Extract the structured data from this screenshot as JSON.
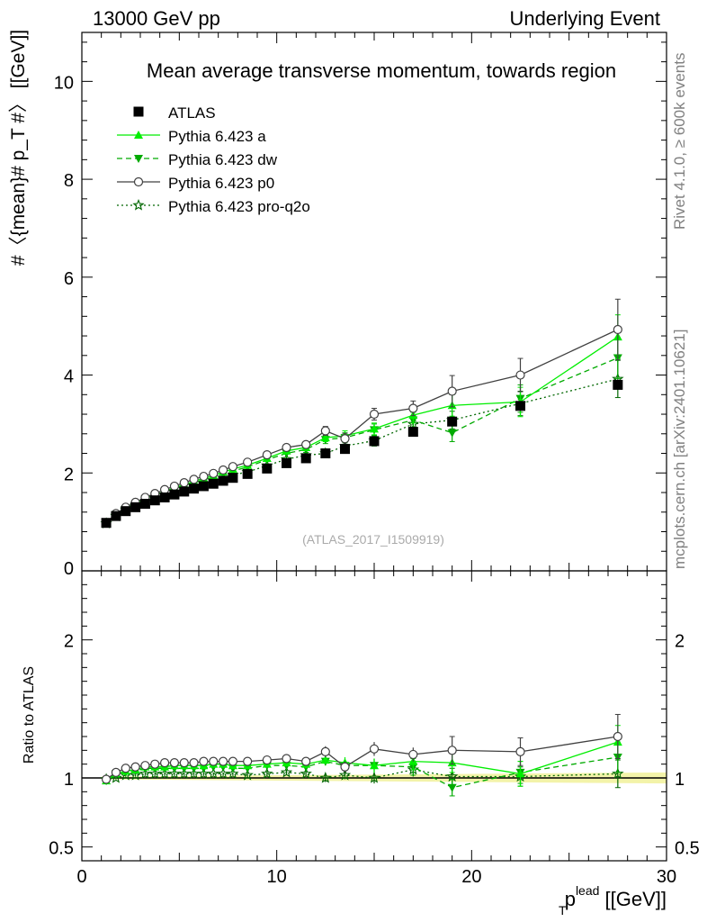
{
  "header": {
    "left": "13000 GeV pp",
    "right": "Underlying Event"
  },
  "side_labels": {
    "rivet": "Rivet 4.1.0, ≥ 600k events",
    "mcplots": "mcplots.cern.ch [arXiv:2401.10621]"
  },
  "colors": {
    "atlas": "#000000",
    "pythia_a": "#00ee00",
    "pythia_dw": "#00aa00",
    "pythia_p0": "#404040",
    "pythia_proq2o": "#006600",
    "band": "#f2f2a0"
  },
  "chart_data": [
    {
      "type": "scatter",
      "panel": "main",
      "title": "Mean average transverse momentum, towards region",
      "watermark": "(ATLAS_2017_I1509919)",
      "ylabel": "#〈{mean}# p_T #〉 [[GeV]]",
      "xlim": [
        0,
        30
      ],
      "ylim": [
        0,
        11.0
      ],
      "yticks": [
        {
          "v": 0,
          "label": "0"
        },
        {
          "v": 2,
          "label": "2"
        },
        {
          "v": 4,
          "label": "4"
        },
        {
          "v": 6,
          "label": "6"
        },
        {
          "v": 8,
          "label": "8"
        },
        {
          "v": 10,
          "label": "10"
        }
      ],
      "legend": [
        {
          "key": "atlas",
          "label": "ATLAS"
        },
        {
          "key": "a",
          "label": "Pythia 6.423 a"
        },
        {
          "key": "dw",
          "label": "Pythia 6.423 dw"
        },
        {
          "key": "p0",
          "label": "Pythia 6.423 p0"
        },
        {
          "key": "proq2o",
          "label": "Pythia 6.423 pro-q2o"
        }
      ],
      "x": [
        1.25,
        1.75,
        2.25,
        2.75,
        3.25,
        3.75,
        4.25,
        4.75,
        5.25,
        5.75,
        6.25,
        6.75,
        7.25,
        7.75,
        8.5,
        9.5,
        10.5,
        11.5,
        12.5,
        13.5,
        15.0,
        17.0,
        19.0,
        22.5,
        27.5
      ],
      "series": [
        {
          "key": "atlas",
          "name": "ATLAS",
          "values": [
            0.98,
            1.12,
            1.22,
            1.3,
            1.37,
            1.44,
            1.5,
            1.56,
            1.62,
            1.68,
            1.73,
            1.78,
            1.84,
            1.9,
            1.98,
            2.09,
            2.2,
            2.3,
            2.4,
            2.49,
            2.65,
            2.84,
            3.05,
            3.37,
            3.8
          ]
        },
        {
          "key": "a",
          "name": "Pythia 6.423 a",
          "values": [
            0.98,
            1.16,
            1.28,
            1.38,
            1.48,
            1.55,
            1.62,
            1.7,
            1.76,
            1.83,
            1.89,
            1.95,
            2.02,
            2.08,
            2.16,
            2.3,
            2.45,
            2.52,
            2.72,
            2.76,
            2.9,
            3.18,
            3.38,
            3.45,
            4.78
          ],
          "errors": [
            0.01,
            0.01,
            0.01,
            0.01,
            0.01,
            0.01,
            0.01,
            0.01,
            0.02,
            0.02,
            0.02,
            0.02,
            0.02,
            0.03,
            0.03,
            0.04,
            0.05,
            0.06,
            0.08,
            0.1,
            0.12,
            0.16,
            0.22,
            0.3,
            0.45
          ]
        },
        {
          "key": "dw",
          "name": "Pythia 6.423 dw",
          "values": [
            0.98,
            1.15,
            1.27,
            1.36,
            1.46,
            1.53,
            1.6,
            1.67,
            1.74,
            1.8,
            1.86,
            1.92,
            1.98,
            2.04,
            2.12,
            2.27,
            2.4,
            2.48,
            2.68,
            2.72,
            2.88,
            3.08,
            2.82,
            3.52,
            4.35
          ],
          "errors": [
            0.01,
            0.01,
            0.01,
            0.01,
            0.01,
            0.01,
            0.01,
            0.01,
            0.02,
            0.02,
            0.02,
            0.02,
            0.02,
            0.03,
            0.03,
            0.04,
            0.05,
            0.06,
            0.08,
            0.1,
            0.12,
            0.16,
            0.18,
            0.28,
            0.42
          ]
        },
        {
          "key": "p0",
          "name": "Pythia 6.423 p0",
          "values": [
            0.98,
            1.17,
            1.3,
            1.4,
            1.5,
            1.58,
            1.66,
            1.73,
            1.8,
            1.87,
            1.93,
            1.99,
            2.06,
            2.13,
            2.22,
            2.37,
            2.52,
            2.58,
            2.86,
            2.7,
            3.2,
            3.32,
            3.67,
            4.0,
            4.93
          ],
          "errors": [
            0.01,
            0.01,
            0.01,
            0.01,
            0.01,
            0.01,
            0.01,
            0.01,
            0.02,
            0.02,
            0.02,
            0.02,
            0.02,
            0.03,
            0.03,
            0.04,
            0.05,
            0.06,
            0.09,
            0.11,
            0.12,
            0.15,
            0.32,
            0.34,
            0.62
          ]
        },
        {
          "key": "proq2o",
          "name": "Pythia 6.423 pro-q2o",
          "values": [
            0.97,
            1.12,
            1.25,
            1.33,
            1.41,
            1.48,
            1.55,
            1.61,
            1.67,
            1.73,
            1.78,
            1.84,
            1.9,
            1.96,
            2.02,
            2.15,
            2.28,
            2.36,
            2.4,
            2.55,
            2.66,
            3.0,
            3.08,
            3.42,
            3.92
          ],
          "errors": [
            0.01,
            0.01,
            0.01,
            0.01,
            0.01,
            0.01,
            0.01,
            0.01,
            0.02,
            0.02,
            0.02,
            0.02,
            0.02,
            0.03,
            0.03,
            0.04,
            0.05,
            0.06,
            0.07,
            0.09,
            0.11,
            0.14,
            0.18,
            0.25,
            0.38
          ]
        }
      ]
    },
    {
      "type": "scatter",
      "panel": "ratio",
      "ylabel": "Ratio to ATLAS",
      "xlabel_main": "p",
      "xlabel_sub": "T",
      "xlabel_sup": "lead",
      "xlabel_unit": "[[GeV]]",
      "xlim": [
        0,
        30
      ],
      "ylim": [
        0.4,
        2.5
      ],
      "xticks": [
        {
          "v": 0,
          "label": "0"
        },
        {
          "v": 10,
          "label": "10"
        },
        {
          "v": 20,
          "label": "20"
        },
        {
          "v": 30,
          "label": "30"
        }
      ],
      "yticks": [
        {
          "v": 0.5,
          "label": "0.5"
        },
        {
          "v": 1,
          "label": "1"
        },
        {
          "v": 2,
          "label": "2"
        }
      ],
      "band": {
        "x": [
          1.0,
          30.0
        ],
        "lower": [
          0.99,
          0.96
        ],
        "upper": [
          1.01,
          1.04
        ]
      },
      "x": [
        1.25,
        1.75,
        2.25,
        2.75,
        3.25,
        3.75,
        4.25,
        4.75,
        5.25,
        5.75,
        6.25,
        6.75,
        7.25,
        7.75,
        8.5,
        9.5,
        10.5,
        11.5,
        12.5,
        13.5,
        15.0,
        17.0,
        19.0,
        22.5,
        27.5
      ],
      "series": [
        {
          "key": "a",
          "name": "Pythia 6.423 a",
          "values": [
            0.98,
            1.03,
            1.05,
            1.06,
            1.08,
            1.08,
            1.08,
            1.09,
            1.09,
            1.09,
            1.09,
            1.1,
            1.1,
            1.09,
            1.09,
            1.1,
            1.11,
            1.1,
            1.13,
            1.11,
            1.09,
            1.12,
            1.11,
            1.03,
            1.26
          ],
          "errors": [
            0.01,
            0.01,
            0.01,
            0.01,
            0.01,
            0.01,
            0.01,
            0.01,
            0.01,
            0.01,
            0.01,
            0.01,
            0.01,
            0.01,
            0.02,
            0.02,
            0.02,
            0.03,
            0.03,
            0.04,
            0.05,
            0.06,
            0.07,
            0.09,
            0.12
          ]
        },
        {
          "key": "dw",
          "name": "Pythia 6.423 dw",
          "values": [
            0.98,
            1.03,
            1.04,
            1.05,
            1.07,
            1.07,
            1.07,
            1.07,
            1.07,
            1.07,
            1.07,
            1.08,
            1.08,
            1.07,
            1.07,
            1.09,
            1.09,
            1.08,
            1.12,
            1.09,
            1.09,
            1.08,
            0.93,
            1.04,
            1.15
          ],
          "errors": [
            0.01,
            0.01,
            0.01,
            0.01,
            0.01,
            0.01,
            0.01,
            0.01,
            0.01,
            0.01,
            0.01,
            0.01,
            0.01,
            0.01,
            0.02,
            0.02,
            0.02,
            0.03,
            0.03,
            0.04,
            0.05,
            0.06,
            0.06,
            0.08,
            0.11
          ]
        },
        {
          "key": "p0",
          "name": "Pythia 6.423 p0",
          "values": [
            0.99,
            1.04,
            1.07,
            1.08,
            1.09,
            1.1,
            1.11,
            1.11,
            1.11,
            1.11,
            1.12,
            1.12,
            1.12,
            1.12,
            1.12,
            1.13,
            1.14,
            1.12,
            1.19,
            1.08,
            1.21,
            1.17,
            1.2,
            1.19,
            1.3
          ],
          "errors": [
            0.01,
            0.01,
            0.01,
            0.01,
            0.01,
            0.01,
            0.01,
            0.01,
            0.01,
            0.01,
            0.01,
            0.01,
            0.01,
            0.01,
            0.02,
            0.02,
            0.02,
            0.03,
            0.04,
            0.04,
            0.05,
            0.05,
            0.1,
            0.1,
            0.16
          ]
        },
        {
          "key": "proq2o",
          "name": "Pythia 6.423 pro-q2o",
          "values": [
            0.99,
            1.0,
            1.02,
            1.02,
            1.03,
            1.03,
            1.03,
            1.03,
            1.03,
            1.03,
            1.03,
            1.03,
            1.03,
            1.03,
            1.02,
            1.03,
            1.04,
            1.03,
            1.0,
            1.02,
            1.0,
            1.06,
            1.01,
            1.01,
            1.03
          ],
          "errors": [
            0.01,
            0.01,
            0.01,
            0.01,
            0.01,
            0.01,
            0.01,
            0.01,
            0.01,
            0.01,
            0.01,
            0.01,
            0.01,
            0.01,
            0.02,
            0.02,
            0.02,
            0.02,
            0.03,
            0.03,
            0.04,
            0.05,
            0.06,
            0.07,
            0.1
          ]
        }
      ]
    }
  ]
}
